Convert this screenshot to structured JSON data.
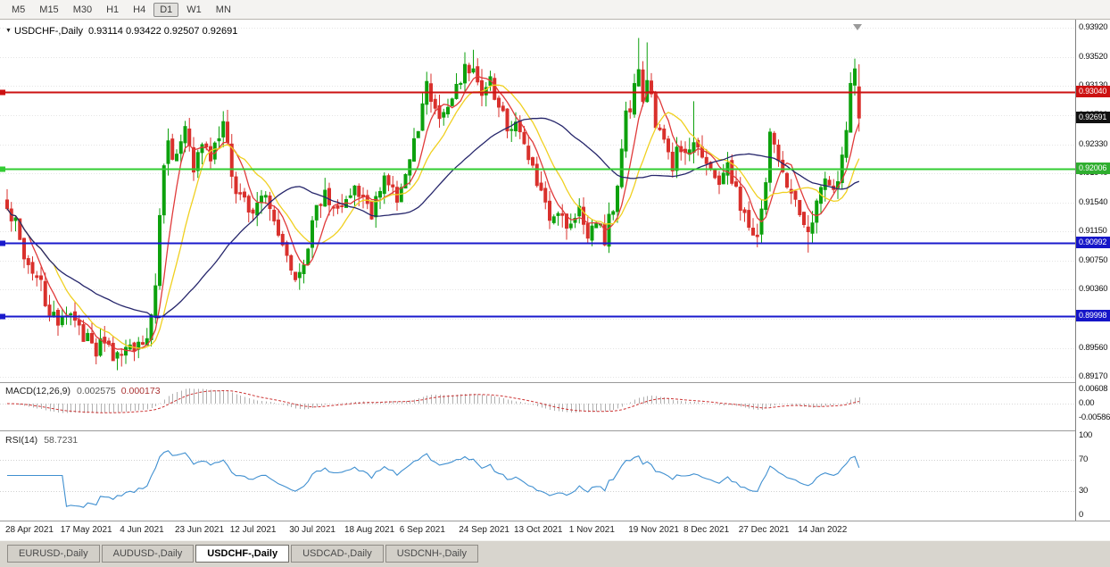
{
  "toolbar": {
    "timeframes": [
      {
        "label": "M5",
        "active": false
      },
      {
        "label": "M15",
        "active": false
      },
      {
        "label": "M30",
        "active": false
      },
      {
        "label": "H1",
        "active": false
      },
      {
        "label": "H4",
        "active": false
      },
      {
        "label": "D1",
        "active": true
      },
      {
        "label": "W1",
        "active": false
      },
      {
        "label": "MN",
        "active": false
      }
    ]
  },
  "chart": {
    "collapse_icon": "▼",
    "symbol_title": "USDCHF-,Daily",
    "ohlc_text": "0.93114 0.93422 0.92507 0.92691"
  },
  "price_axis": {
    "ticks": [
      "0.93920",
      "0.93520",
      "0.93130",
      "0.92730",
      "0.92330",
      "0.91940",
      "0.91540",
      "0.91150",
      "0.90750",
      "0.90360",
      "0.89960",
      "0.89560",
      "0.89170"
    ],
    "tags": [
      {
        "value": "0.93040",
        "price": 0.9304,
        "color": "#cc1111"
      },
      {
        "value": "0.92691",
        "price": 0.92691,
        "color": "#111111"
      },
      {
        "value": "0.92006",
        "price": 0.92006,
        "color": "#2fae2f"
      },
      {
        "value": "0.90992",
        "price": 0.90992,
        "color": "#1515c8"
      },
      {
        "value": "0.89998",
        "price": 0.89998,
        "color": "#1515c8"
      }
    ]
  },
  "macd_panel": {
    "label": "MACD(12,26,9)",
    "value_main": "0.002575",
    "value_signal": "0.000173",
    "axis": [
      "0.00608",
      "0.00",
      "-0.00586"
    ]
  },
  "rsi_panel": {
    "label": "RSI(14)",
    "value": "58.7231",
    "axis": [
      "100",
      "70",
      "30",
      "0"
    ]
  },
  "date_axis": {
    "labels": [
      {
        "day": 0,
        "label": "28 Apr 2021"
      },
      {
        "day": 13,
        "label": "17 May 2021"
      },
      {
        "day": 27,
        "label": "4 Jun 2021"
      },
      {
        "day": 40,
        "label": "23 Jun 2021"
      },
      {
        "day": 53,
        "label": "12 Jul 2021"
      },
      {
        "day": 67,
        "label": "30 Jul 2021"
      },
      {
        "day": 80,
        "label": "18 Aug 2021"
      },
      {
        "day": 93,
        "label": "6 Sep 2021"
      },
      {
        "day": 107,
        "label": "24 Sep 2021"
      },
      {
        "day": 120,
        "label": "13 Oct 2021"
      },
      {
        "day": 133,
        "label": "1 Nov 2021"
      },
      {
        "day": 147,
        "label": "19 Nov 2021"
      },
      {
        "day": 160,
        "label": "8 Dec 2021"
      },
      {
        "day": 173,
        "label": "27 Dec 2021"
      },
      {
        "day": 187,
        "label": "14 Jan 2022"
      }
    ]
  },
  "tabs": [
    {
      "label": "EURUSD-,Daily",
      "active": false
    },
    {
      "label": "AUDUSD-,Daily",
      "active": false
    },
    {
      "label": "USDCHF-,Daily",
      "active": true
    },
    {
      "label": "USDCAD-,Daily",
      "active": false
    },
    {
      "label": "USDCNH-,Daily",
      "active": false
    }
  ],
  "chart_data": {
    "type": "candlestick",
    "symbol": "USDCHF-",
    "timeframe": "Daily",
    "current_bar": {
      "open": 0.93114,
      "high": 0.93422,
      "low": 0.92507,
      "close": 0.92691
    },
    "ylim": [
      0.8917,
      0.9392
    ],
    "up_color": "#0da10d",
    "down_color": "#d9302c",
    "levels": [
      {
        "price": 0.9304,
        "color": "#cc1111",
        "width": 1.6
      },
      {
        "price": 0.92006,
        "color": "#33cc33",
        "width": 2
      },
      {
        "price": 0.90992,
        "color": "#1a1acc",
        "width": 2
      },
      {
        "price": 0.89998,
        "color": "#1a1acc",
        "width": 2
      }
    ],
    "moving_averages": [
      {
        "period": 6,
        "color": "#e03a3a"
      },
      {
        "period": 12,
        "color": "#f0d020"
      },
      {
        "period": 34,
        "color": "#26266b"
      }
    ],
    "num_bars": 202,
    "anchors": [
      [
        0,
        0.9148
      ],
      [
        2,
        0.9125
      ],
      [
        4,
        0.9088
      ],
      [
        6,
        0.9058
      ],
      [
        8,
        0.904
      ],
      [
        10,
        0.9005
      ],
      [
        13,
        0.8988
      ],
      [
        15,
        0.9012
      ],
      [
        18,
        0.8976
      ],
      [
        21,
        0.8952
      ],
      [
        23,
        0.8968
      ],
      [
        26,
        0.894
      ],
      [
        28,
        0.8962
      ],
      [
        30,
        0.895
      ],
      [
        33,
        0.8978
      ],
      [
        35,
        0.904
      ],
      [
        36,
        0.913
      ],
      [
        37,
        0.9205
      ],
      [
        38,
        0.9232
      ],
      [
        40,
        0.9215
      ],
      [
        42,
        0.9248
      ],
      [
        44,
        0.9195
      ],
      [
        46,
        0.9228
      ],
      [
        48,
        0.921
      ],
      [
        50,
        0.9245
      ],
      [
        51,
        0.9262
      ],
      [
        53,
        0.9195
      ],
      [
        55,
        0.9158
      ],
      [
        58,
        0.9142
      ],
      [
        60,
        0.917
      ],
      [
        62,
        0.9148
      ],
      [
        64,
        0.91
      ],
      [
        67,
        0.9062
      ],
      [
        69,
        0.9048
      ],
      [
        71,
        0.9092
      ],
      [
        73,
        0.9148
      ],
      [
        75,
        0.9162
      ],
      [
        78,
        0.9138
      ],
      [
        80,
        0.9158
      ],
      [
        82,
        0.9178
      ],
      [
        84,
        0.9162
      ],
      [
        86,
        0.9142
      ],
      [
        88,
        0.9172
      ],
      [
        90,
        0.9188
      ],
      [
        92,
        0.9165
      ],
      [
        93,
        0.9178
      ],
      [
        95,
        0.9212
      ],
      [
        97,
        0.9258
      ],
      [
        99,
        0.9318
      ],
      [
        100,
        0.9295
      ],
      [
        102,
        0.9265
      ],
      [
        104,
        0.9285
      ],
      [
        106,
        0.9318
      ],
      [
        108,
        0.9332
      ],
      [
        110,
        0.9345
      ],
      [
        112,
        0.9302
      ],
      [
        114,
        0.9322
      ],
      [
        116,
        0.9285
      ],
      [
        118,
        0.9262
      ],
      [
        120,
        0.9258
      ],
      [
        122,
        0.9225
      ],
      [
        124,
        0.9195
      ],
      [
        126,
        0.9162
      ],
      [
        128,
        0.9132
      ],
      [
        130,
        0.9148
      ],
      [
        132,
        0.9112
      ],
      [
        133,
        0.9122
      ],
      [
        135,
        0.9138
      ],
      [
        137,
        0.9112
      ],
      [
        139,
        0.9128
      ],
      [
        141,
        0.9105
      ],
      [
        143,
        0.9152
      ],
      [
        145,
        0.9222
      ],
      [
        146,
        0.9288
      ],
      [
        147,
        0.9272
      ],
      [
        148,
        0.9308
      ],
      [
        149,
        0.9332
      ],
      [
        150,
        0.9295
      ],
      [
        151,
        0.9322
      ],
      [
        152,
        0.9312
      ],
      [
        153,
        0.9262
      ],
      [
        155,
        0.9232
      ],
      [
        157,
        0.9208
      ],
      [
        158,
        0.9238
      ],
      [
        160,
        0.9218
      ],
      [
        162,
        0.9242
      ],
      [
        164,
        0.9218
      ],
      [
        166,
        0.9198
      ],
      [
        168,
        0.9188
      ],
      [
        170,
        0.9208
      ],
      [
        172,
        0.9172
      ],
      [
        173,
        0.9152
      ],
      [
        175,
        0.9128
      ],
      [
        177,
        0.9112
      ],
      [
        179,
        0.9182
      ],
      [
        180,
        0.9255
      ],
      [
        182,
        0.9218
      ],
      [
        184,
        0.9182
      ],
      [
        186,
        0.9152
      ],
      [
        187,
        0.9138
      ],
      [
        189,
        0.9118
      ],
      [
        191,
        0.9152
      ],
      [
        193,
        0.9188
      ],
      [
        195,
        0.9172
      ],
      [
        197,
        0.9212
      ],
      [
        198,
        0.9258
      ],
      [
        199,
        0.9312
      ],
      [
        200,
        0.934
      ],
      [
        201,
        0.92691
      ]
    ],
    "overrides": {
      "26": {
        "l": 0.8926
      },
      "99": {
        "h": 0.9332
      },
      "110": {
        "h": 0.9362
      },
      "149": {
        "h": 0.9378
      },
      "151": {
        "h": 0.9372
      },
      "162": {
        "h": 0.9292
      },
      "189": {
        "l": 0.9086
      },
      "199": {
        "l": 0.9252
      },
      "200": {
        "h": 0.935
      },
      "201": {
        "o": 0.93114,
        "h": 0.93422,
        "l": 0.92507,
        "c": 0.92691
      }
    },
    "indicators": {
      "macd": {
        "fast": 12,
        "slow": 26,
        "signal": 9,
        "last_main": 0.002575,
        "last_signal": 0.000173,
        "axis_range": [
          -0.00586,
          0.00608
        ],
        "bar_color": "#b0b0b0",
        "signal_color": "#cc3333"
      },
      "rsi": {
        "period": 14,
        "last": 58.7231,
        "levels": [
          30,
          70
        ],
        "line_color": "#3f8fd0",
        "axis_range": [
          0,
          100
        ]
      }
    }
  }
}
